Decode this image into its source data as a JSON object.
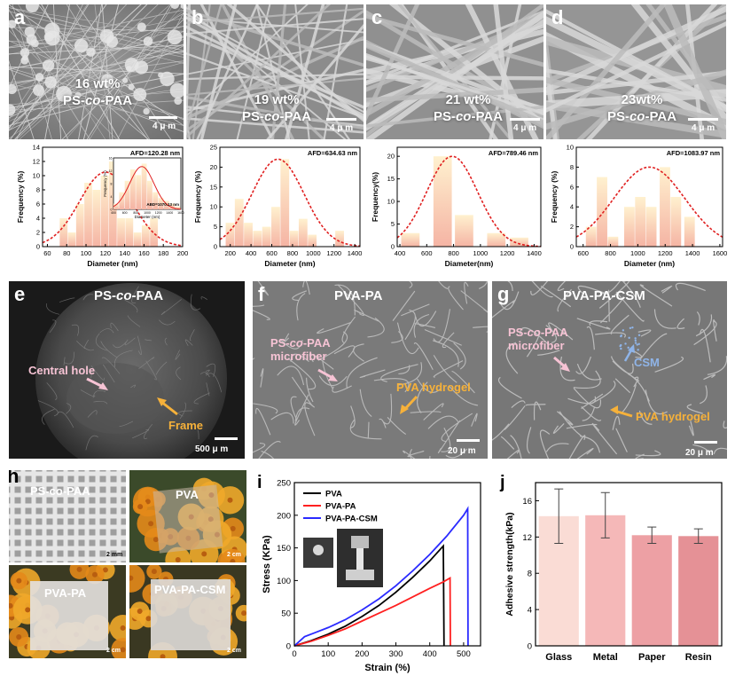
{
  "sem_top": [
    {
      "label": "a",
      "wt": "16 wt%",
      "polymer_prefix": "PS-",
      "polymer_italic": "co",
      "polymer_suffix": "-PAA",
      "scale": "4 μ m"
    },
    {
      "label": "b",
      "wt": "19 wt%",
      "polymer_prefix": "PS-",
      "polymer_italic": "co",
      "polymer_suffix": "-PAA",
      "scale": "4 μ m"
    },
    {
      "label": "c",
      "wt": "21 wt%",
      "polymer_prefix": "PS-",
      "polymer_italic": "co",
      "polymer_suffix": "-PAA",
      "scale": "4 μ m"
    },
    {
      "label": "d",
      "wt": "23wt%",
      "polymer_prefix": "PS-",
      "polymer_italic": "co",
      "polymer_suffix": "-PAA",
      "scale": "4 μ m"
    }
  ],
  "chart_data": [
    {
      "type": "bar",
      "panel": "a",
      "annotation": "AFD=120.28 nm",
      "xlabel": "Diameter (nm)",
      "ylabel": "Frequency (%)",
      "xlim": [
        55,
        200
      ],
      "ylim": [
        0,
        14
      ],
      "xticks": [
        60,
        80,
        100,
        120,
        140,
        160,
        180,
        200
      ],
      "yticks": [
        0,
        2,
        4,
        6,
        8,
        10,
        12,
        14
      ],
      "bin_width": 8.5,
      "bins": [
        {
          "x": 77,
          "v": 4
        },
        {
          "x": 85.5,
          "v": 2
        },
        {
          "x": 94,
          "v": 6
        },
        {
          "x": 102.5,
          "v": 9
        },
        {
          "x": 111,
          "v": 8
        },
        {
          "x": 119.5,
          "v": 10
        },
        {
          "x": 128,
          "v": 12
        },
        {
          "x": 136.5,
          "v": 4
        },
        {
          "x": 145,
          "v": 4
        },
        {
          "x": 153.5,
          "v": 2
        },
        {
          "x": 162,
          "v": 3
        },
        {
          "x": 170.5,
          "v": 4
        }
      ],
      "fit": {
        "mean": 120.28,
        "sigma": 27,
        "peak": 10.5
      },
      "inset": {
        "annotation": "ABD=1070.13 nm",
        "xlabel": "Diameter (nm)",
        "ylabel": "Frequency (%)",
        "xticks": [
          400,
          600,
          800,
          1000,
          1200,
          1400,
          1600
        ],
        "yticks": [
          0,
          4,
          8,
          12,
          16
        ]
      }
    },
    {
      "type": "bar",
      "panel": "b",
      "annotation": "AFD=634.63 nm",
      "xlabel": "Diameter (nm)",
      "ylabel": "Frequency (%)",
      "xlim": [
        100,
        1450
      ],
      "ylim": [
        0,
        25
      ],
      "xticks": [
        200,
        400,
        600,
        800,
        1000,
        1200,
        1400
      ],
      "yticks": [
        0,
        5,
        10,
        15,
        20,
        25
      ],
      "bin_width": 88,
      "bins": [
        {
          "x": 200,
          "v": 6
        },
        {
          "x": 288,
          "v": 12
        },
        {
          "x": 376,
          "v": 6
        },
        {
          "x": 464,
          "v": 4
        },
        {
          "x": 552,
          "v": 5
        },
        {
          "x": 640,
          "v": 10
        },
        {
          "x": 728,
          "v": 22
        },
        {
          "x": 816,
          "v": 4
        },
        {
          "x": 904,
          "v": 7
        },
        {
          "x": 992,
          "v": 3
        },
        {
          "x": 1256,
          "v": 4
        }
      ],
      "fit": {
        "mean": 660,
        "sigma": 250,
        "peak": 22
      }
    },
    {
      "type": "bar",
      "panel": "c",
      "annotation": "AFD=789.46 nm",
      "xlabel": "Diameter(nm)",
      "ylabel": "Frequency(%)",
      "xlim": [
        380,
        1450
      ],
      "ylim": [
        0,
        22
      ],
      "xticks": [
        400,
        600,
        800,
        1000,
        1200,
        1400
      ],
      "yticks": [
        0,
        5,
        10,
        15,
        20
      ],
      "bin_width": 140,
      "bins": [
        {
          "x": 480,
          "v": 3
        },
        {
          "x": 720,
          "v": 20
        },
        {
          "x": 880,
          "v": 7
        },
        {
          "x": 1120,
          "v": 3
        },
        {
          "x": 1290,
          "v": 2
        }
      ],
      "fit": {
        "mean": 789.46,
        "sigma": 190,
        "peak": 20
      }
    },
    {
      "type": "bar",
      "panel": "d",
      "annotation": "AFD=1083.97 nm",
      "xlabel": "Diameter (nm)",
      "ylabel": "Frequency (%)",
      "xlim": [
        550,
        1620
      ],
      "ylim": [
        0,
        10
      ],
      "xticks": [
        600,
        800,
        1000,
        1200,
        1400,
        1600
      ],
      "yticks": [
        0,
        2,
        4,
        6,
        8,
        10
      ],
      "bin_width": 80,
      "bins": [
        {
          "x": 660,
          "v": 2
        },
        {
          "x": 740,
          "v": 7
        },
        {
          "x": 820,
          "v": 1
        },
        {
          "x": 940,
          "v": 4
        },
        {
          "x": 1020,
          "v": 5
        },
        {
          "x": 1100,
          "v": 4
        },
        {
          "x": 1200,
          "v": 8
        },
        {
          "x": 1280,
          "v": 5
        },
        {
          "x": 1380,
          "v": 3
        }
      ],
      "fit": {
        "mean": 1083.97,
        "sigma": 260,
        "peak": 8
      }
    },
    {
      "type": "line",
      "panel": "i",
      "xlabel": "Strain (%)",
      "ylabel": "Stress (KPa)",
      "xlim": [
        0,
        550
      ],
      "ylim": [
        0,
        250
      ],
      "xticks": [
        0,
        100,
        200,
        300,
        400,
        500
      ],
      "yticks": [
        0,
        50,
        100,
        150,
        200,
        250
      ],
      "legend_position": "top-left",
      "series": [
        {
          "name": "PVA",
          "color": "#000000",
          "x": [
            0,
            50,
            100,
            150,
            200,
            250,
            300,
            350,
            400,
            440,
            441,
            442
          ],
          "y": [
            0,
            8,
            18,
            30,
            45,
            62,
            82,
            105,
            130,
            153,
            80,
            0
          ]
        },
        {
          "name": "PVA-PA",
          "color": "#ff2020",
          "x": [
            0,
            50,
            100,
            150,
            200,
            250,
            300,
            350,
            400,
            440,
            460,
            461
          ],
          "y": [
            0,
            7,
            16,
            26,
            38,
            50,
            62,
            75,
            88,
            98,
            104,
            0
          ]
        },
        {
          "name": "PVA-PA-CSM",
          "color": "#2a2aff",
          "x": [
            0,
            30,
            60,
            100,
            150,
            200,
            250,
            300,
            350,
            400,
            450,
            500,
            512,
            513
          ],
          "y": [
            0,
            14,
            20,
            28,
            40,
            55,
            72,
            92,
            115,
            140,
            168,
            200,
            210,
            0
          ]
        }
      ]
    },
    {
      "type": "bar",
      "panel": "j",
      "xlabel": "",
      "ylabel": "Adhesive strength(kPa)",
      "ylim": [
        0,
        18
      ],
      "yticks": [
        0,
        4,
        8,
        12,
        16
      ],
      "categories": [
        "Glass",
        "Metal",
        "Paper",
        "Resin"
      ],
      "values": [
        14.3,
        14.4,
        12.2,
        12.1
      ],
      "errors": [
        3.0,
        2.5,
        0.9,
        0.8
      ],
      "colors": [
        "#fadcd5",
        "#f5b8b8",
        "#eda0a4",
        "#e59196"
      ]
    }
  ],
  "panel_e": {
    "label": "e",
    "title_prefix": "PS-",
    "title_italic": "co",
    "title_suffix": "-PAA",
    "hole": "Central hole",
    "frame": "Frame",
    "scale": "500 μ m"
  },
  "panel_f": {
    "label": "f",
    "title": "PVA-PA",
    "fiber_prefix": "PS-",
    "fiber_italic": "co",
    "fiber_suffix": "-PAA",
    "fiber2": "microfiber",
    "hydrogel": "PVA hydrogel",
    "scale": "20 μ m"
  },
  "panel_g": {
    "label": "g",
    "title": "PVA-PA-CSM",
    "fiber_prefix": "PS-",
    "fiber_italic": "co",
    "fiber_suffix": "-PAA",
    "fiber2": "microfiber",
    "csm": "CSM",
    "hydrogel": "PVA hydrogel",
    "scale": "20 μ m"
  },
  "panel_h": {
    "label": "h",
    "tiles": [
      {
        "text": "PS-co-PAA",
        "scale": "2 mm"
      },
      {
        "text": "PVA",
        "scale": "2 cm"
      },
      {
        "text": "PVA-PA",
        "scale": "2 cm"
      },
      {
        "text": "PVA-PA-CSM",
        "scale": "2 cm"
      }
    ]
  },
  "panel_i_label": "i",
  "panel_j_label": "j",
  "colors": {
    "hist_top": "#fde9c2",
    "hist_bottom": "#f4a3a0",
    "fit": "#e02020",
    "pink": "#f6c3d4",
    "orange": "#f6b13a",
    "csm_blue": "#8fb4e8"
  }
}
